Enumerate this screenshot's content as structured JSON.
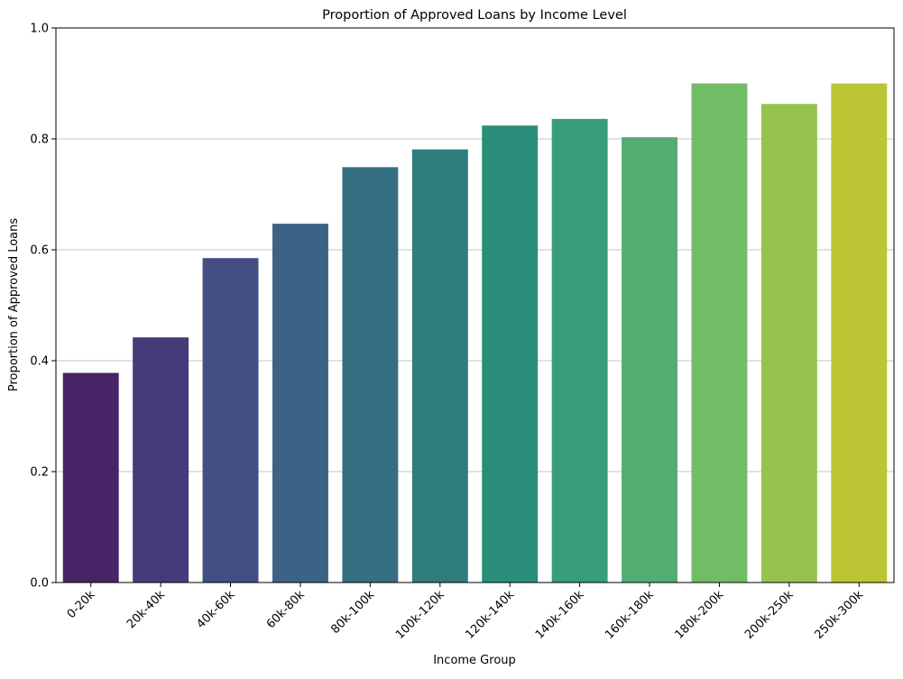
{
  "chart_data": {
    "type": "bar",
    "title": "Proportion of Approved Loans by Income Level",
    "xlabel": "Income Group",
    "ylabel": "Proportion of Approved Loans",
    "categories": [
      "0-20k",
      "20k-40k",
      "40k-60k",
      "60k-80k",
      "80k-100k",
      "100k-120k",
      "120k-140k",
      "140k-160k",
      "160k-180k",
      "180k-200k",
      "200k-250k",
      "250k-300k"
    ],
    "values": [
      0.378,
      0.442,
      0.585,
      0.647,
      0.749,
      0.781,
      0.824,
      0.836,
      0.803,
      0.9,
      0.863,
      0.9
    ],
    "colors": [
      "#482466",
      "#463b78",
      "#434f82",
      "#3c6385",
      "#366f81",
      "#2f7d7d",
      "#2a8d7a",
      "#389d7d",
      "#53ad72",
      "#73bb67",
      "#96c350",
      "#bcc533"
    ],
    "ylim": [
      0,
      1.0
    ],
    "yticks": [
      "0.0",
      "0.2",
      "0.4",
      "0.6",
      "0.8",
      "1.0"
    ],
    "grid": "y-major",
    "legend": "none"
  }
}
